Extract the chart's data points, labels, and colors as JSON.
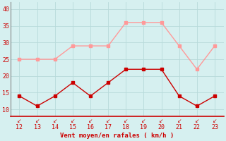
{
  "x": [
    12,
    13,
    14,
    15,
    16,
    17,
    18,
    19,
    20,
    21,
    22,
    23
  ],
  "y_mean": [
    14,
    11,
    14,
    18,
    14,
    18,
    22,
    22,
    22,
    14,
    11,
    14
  ],
  "y_gust": [
    25,
    25,
    25,
    29,
    29,
    29,
    36,
    36,
    36,
    29,
    22,
    29
  ],
  "mean_color": "#cc0000",
  "gust_color": "#ff9999",
  "bg_color": "#d6f0f0",
  "grid_color": "#b8dada",
  "axis_color": "#cc0000",
  "spine_color": "#888888",
  "xlabel": "Vent moyen/en rafales ( km/h )",
  "ylim": [
    8,
    42
  ],
  "yticks": [
    10,
    15,
    20,
    25,
    30,
    35,
    40
  ],
  "xticks": [
    12,
    13,
    14,
    15,
    16,
    17,
    18,
    19,
    20,
    21,
    22,
    23
  ],
  "linewidth": 1.0,
  "markersize": 2.5
}
